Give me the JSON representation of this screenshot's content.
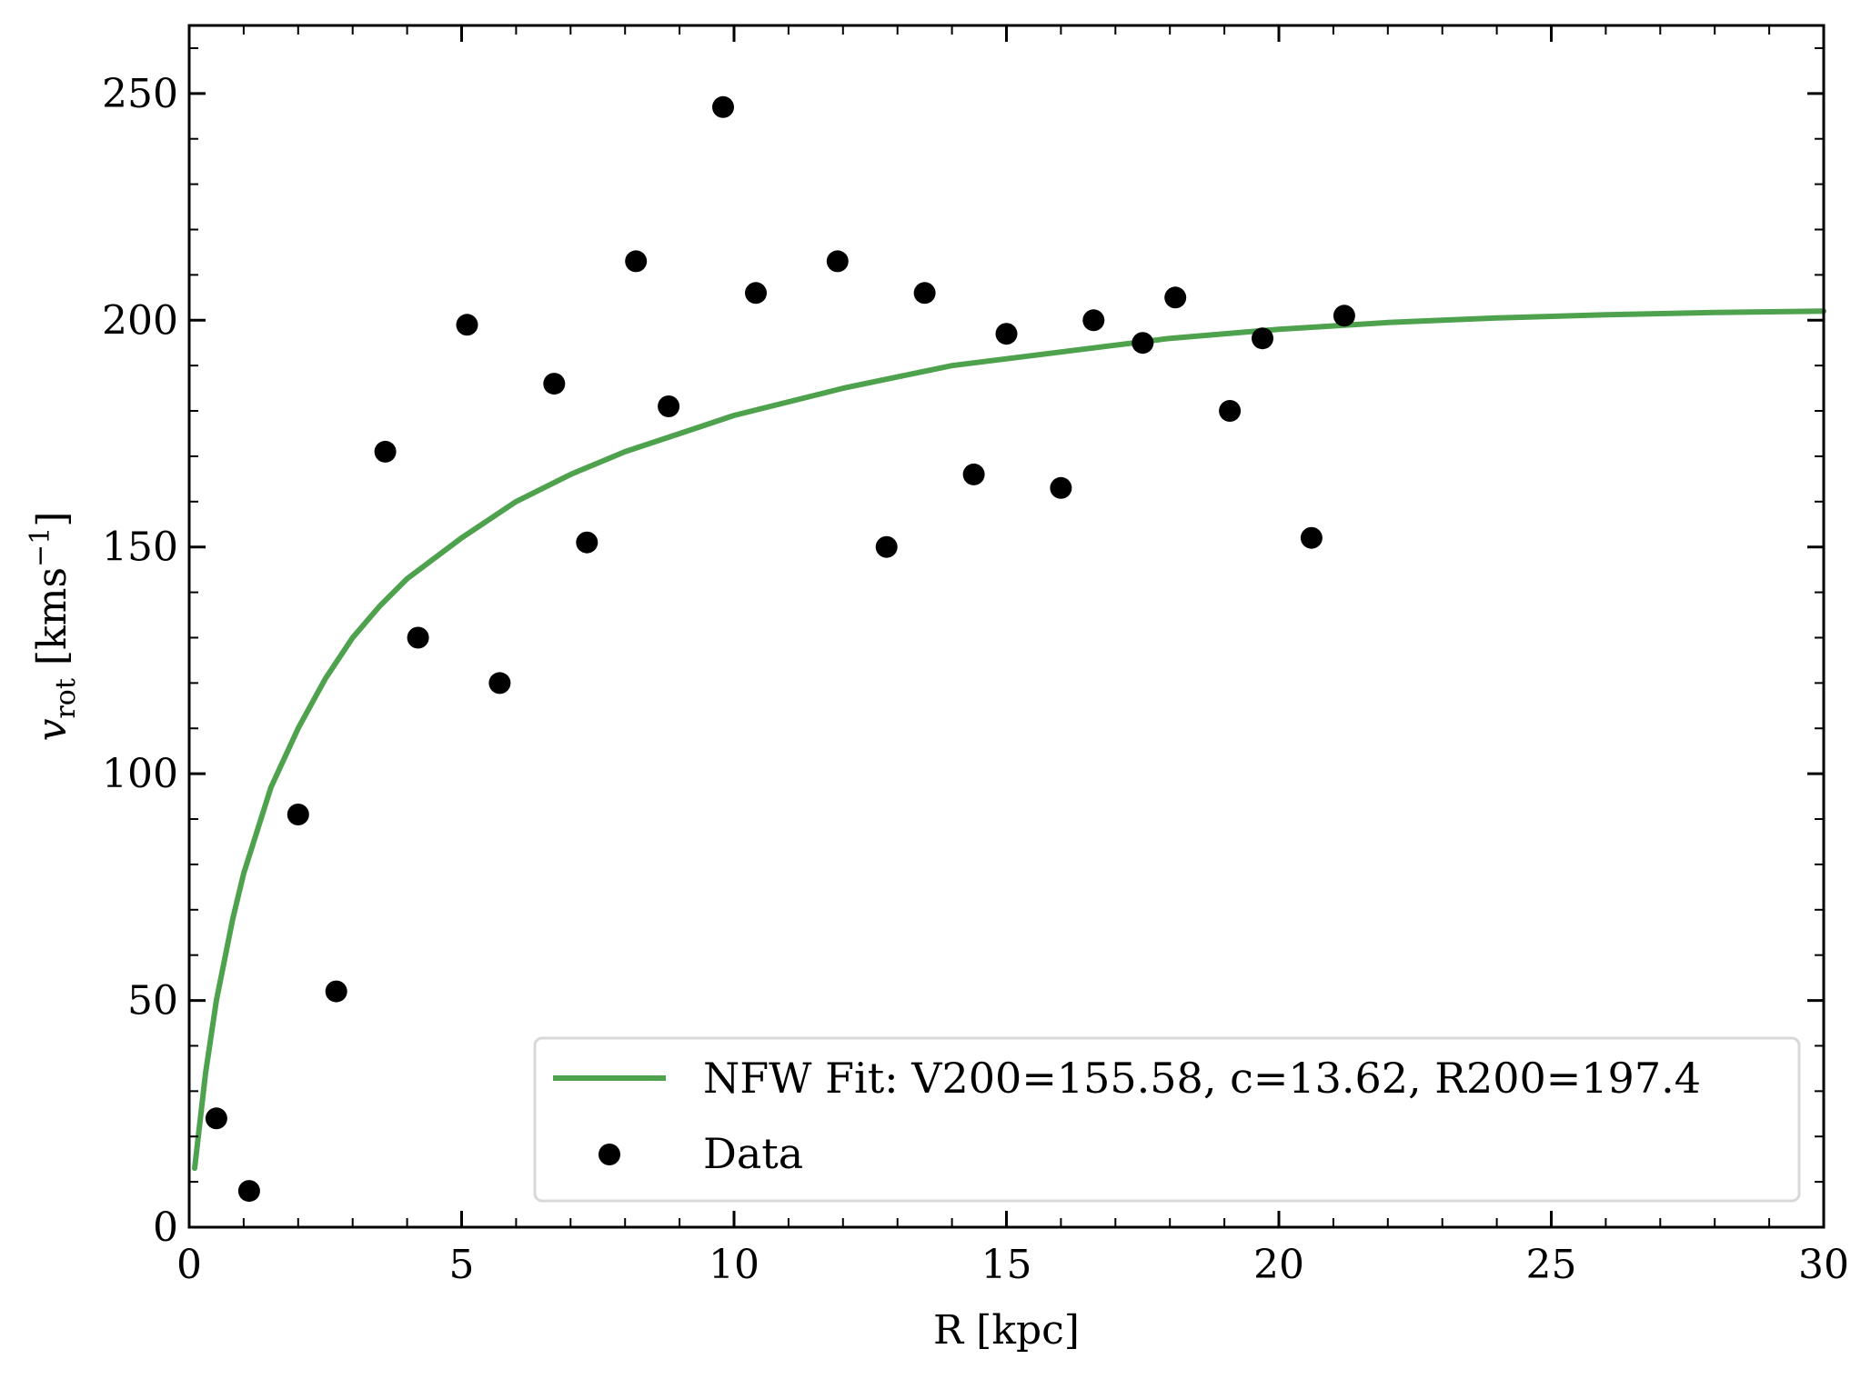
{
  "chart_data": {
    "type": "scatter",
    "title": "",
    "xlabel": "R [kpc]",
    "ylabel": {
      "base": "v",
      "sub": "rot",
      "unit_open": " [kms",
      "unit_sup": "−1",
      "unit_close": "]"
    },
    "xlim": [
      0,
      30
    ],
    "ylim": [
      0,
      265
    ],
    "x_ticks": [
      0,
      5,
      10,
      15,
      20,
      25,
      30
    ],
    "y_ticks": [
      0,
      50,
      100,
      150,
      200,
      250
    ],
    "x_minor_step": 1,
    "y_minor_step": 10,
    "grid": false,
    "legend_position": "lower-right",
    "series": [
      {
        "name": "NFW Fit: V200=155.58, c=13.62, R200=197.4",
        "kind": "line",
        "color": "#4ea24e",
        "x": [
          0.1,
          0.3,
          0.5,
          0.8,
          1,
          1.5,
          2,
          2.5,
          3,
          3.5,
          4,
          5,
          6,
          7,
          8,
          9,
          10,
          12,
          14,
          16,
          18,
          20,
          22,
          24,
          26,
          28,
          30
        ],
        "y": [
          13,
          34,
          50,
          68,
          78,
          97,
          110,
          121,
          130,
          137,
          143,
          152,
          160,
          166,
          171,
          175,
          179,
          185,
          190,
          193,
          196,
          198,
          199.5,
          200.5,
          201.2,
          201.7,
          202
        ]
      },
      {
        "name": "Data",
        "kind": "scatter",
        "color": "#000000",
        "x": [
          0.5,
          1.1,
          2.0,
          2.7,
          3.6,
          4.2,
          5.1,
          5.7,
          6.7,
          7.3,
          8.2,
          8.8,
          9.8,
          10.4,
          11.9,
          12.8,
          13.5,
          14.4,
          15.0,
          16.0,
          16.6,
          17.5,
          18.1,
          19.1,
          19.7,
          20.6,
          21.2
        ],
        "y": [
          24,
          8,
          91,
          52,
          171,
          130,
          199,
          120,
          186,
          151,
          213,
          181,
          247,
          206,
          213,
          150,
          206,
          166,
          197,
          163,
          200,
          195,
          205,
          180,
          196,
          152,
          201
        ]
      }
    ]
  }
}
